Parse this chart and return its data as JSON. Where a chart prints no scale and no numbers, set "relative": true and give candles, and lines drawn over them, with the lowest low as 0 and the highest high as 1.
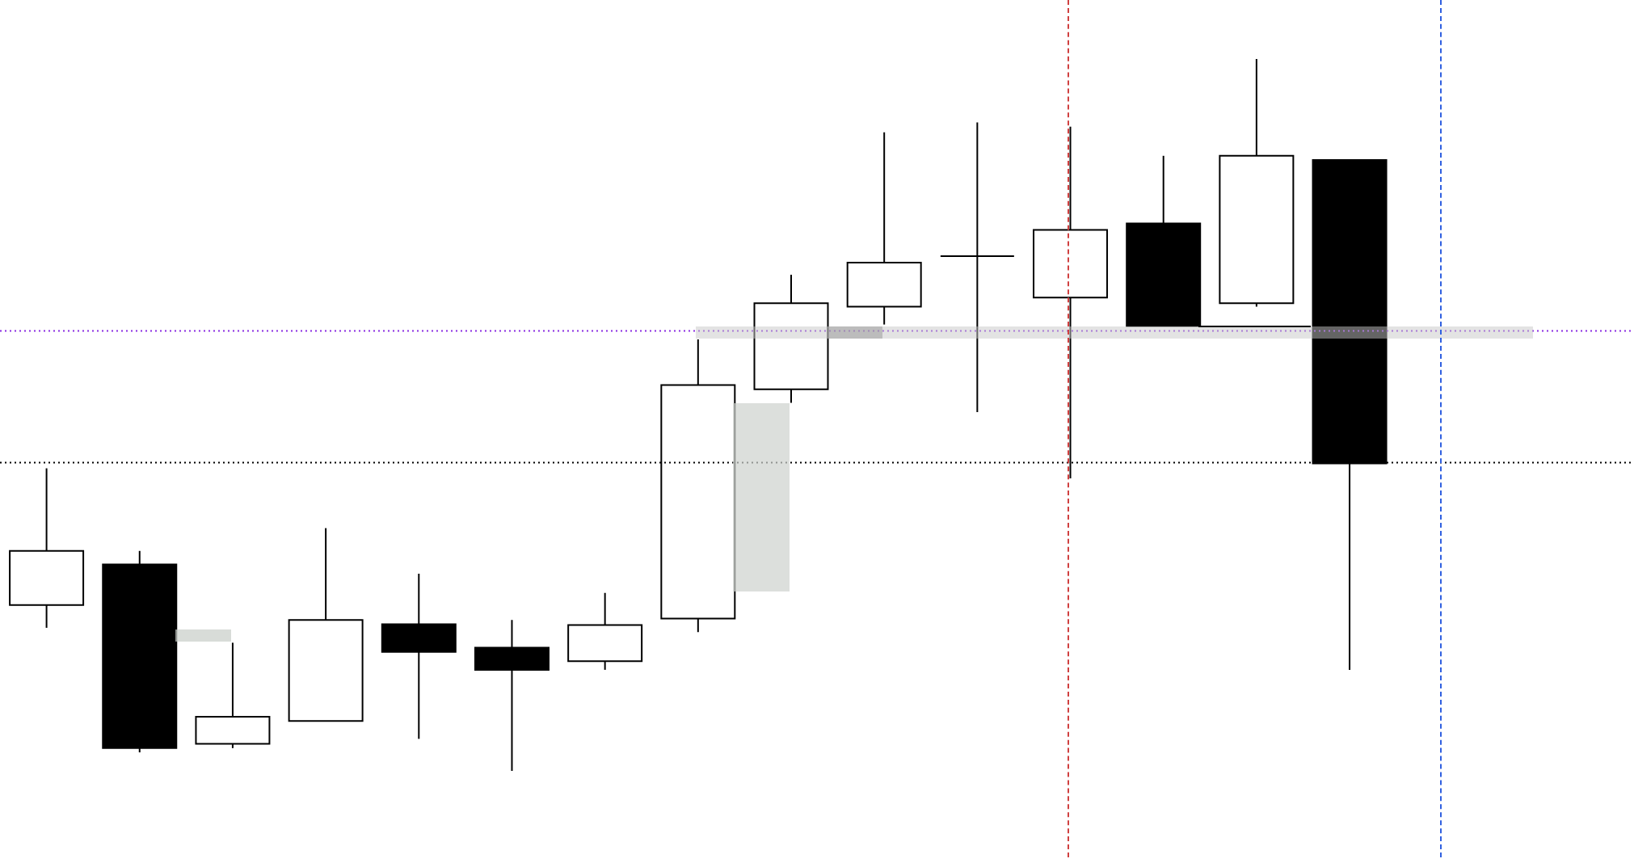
{
  "chart_data": {
    "type": "candlestick",
    "relative": true,
    "categories": [
      null,
      null,
      null,
      null,
      null,
      null,
      null,
      null,
      null,
      null,
      null,
      null,
      null,
      null,
      null,
      null,
      null
    ],
    "ohlc": [
      [
        0.233,
        0.425,
        0.201,
        0.309
      ],
      [
        0.29,
        0.309,
        0.026,
        0.032
      ],
      [
        0.038,
        0.18,
        0.032,
        0.076
      ],
      [
        0.07,
        0.341,
        0.07,
        0.212
      ],
      [
        0.206,
        0.277,
        0.045,
        0.167
      ],
      [
        0.173,
        0.212,
        0,
        0.142
      ],
      [
        0.154,
        0.25,
        0.142,
        0.205
      ],
      [
        0.214,
        0.606,
        0.195,
        0.542
      ],
      [
        0.536,
        0.697,
        0.517,
        0.657
      ],
      [
        0.652,
        0.897,
        0.627,
        0.714
      ],
      [
        0.723,
        0.911,
        0.504,
        0.723
      ],
      [
        0.665,
        0.905,
        0.411,
        0.76
      ],
      [
        0.769,
        0.864,
        0.625,
        0.625
      ],
      [
        0.657,
        1,
        0.652,
        0.864
      ],
      [
        0.858,
        0.858,
        0.142,
        0.432
      ],
      null,
      null
    ],
    "ref_lines": [
      {
        "axis": "y",
        "value": 0.433,
        "color": "#000000",
        "line_style": "dotted"
      },
      {
        "axis": "y",
        "value": 0.618,
        "color": "#8a2be2",
        "line_style": "dotted"
      }
    ]
  }
}
